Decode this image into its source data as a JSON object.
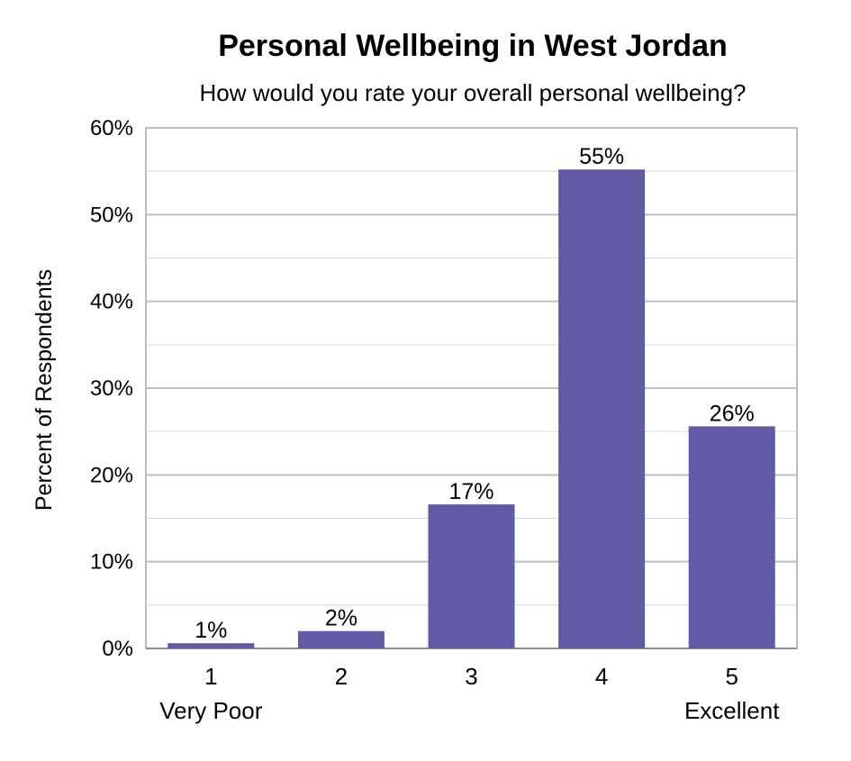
{
  "chart_data": {
    "type": "bar",
    "title": "Personal Wellbeing in West Jordan",
    "subtitle": "How would you rate your overall personal wellbeing?",
    "ylabel": "Percent of Respondents",
    "xlabel": "",
    "categories": [
      "1",
      "2",
      "3",
      "4",
      "5"
    ],
    "category_sublabels": [
      "Very Poor",
      "",
      "",
      "",
      "Excellent"
    ],
    "values": [
      0.6,
      2.0,
      16.6,
      55.2,
      25.6
    ],
    "data_labels": [
      "1%",
      "2%",
      "17%",
      "55%",
      "26%"
    ],
    "ylim": [
      0,
      60
    ],
    "yticks": [
      0,
      10,
      20,
      30,
      40,
      50,
      60
    ],
    "ytick_labels": [
      "0%",
      "10%",
      "20%",
      "30%",
      "40%",
      "50%",
      "60%"
    ],
    "grid": true,
    "legend": "none",
    "bar_color": "#625AA5",
    "grid_color": "#BFBFBF",
    "frame_color": "#A6A6A6"
  }
}
